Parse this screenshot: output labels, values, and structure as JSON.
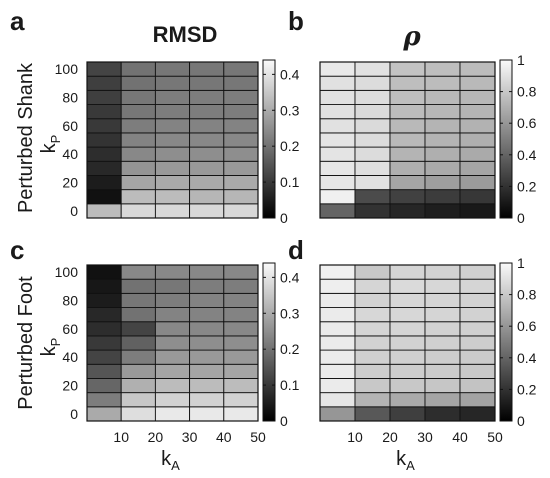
{
  "row_labels": [
    "Perturbed Shank",
    "Perturbed Foot"
  ],
  "column_titles": [
    "RMSD",
    "ρ"
  ],
  "chart_data": [
    {
      "type": "heatmap",
      "panel": "a",
      "title": "RMSD",
      "ylabel": "k",
      "ylabel_sub": "P",
      "xlabel": "",
      "xlabel_sub": "",
      "x": [
        5,
        15,
        25,
        35,
        45
      ],
      "y": [
        0,
        10,
        20,
        30,
        40,
        50,
        60,
        70,
        80,
        90,
        100
      ],
      "xlim": [
        0,
        50
      ],
      "ylim": [
        0,
        100
      ],
      "xticks": [],
      "yticks": [
        0,
        20,
        40,
        60,
        80,
        100
      ],
      "clim": [
        0,
        0.44
      ],
      "colorbar_ticks": [
        0,
        0.1,
        0.2,
        0.3,
        0.4
      ],
      "colormap": "gray",
      "values": [
        [
          0.33,
          0.38,
          0.38,
          0.38,
          0.38
        ],
        [
          0.03,
          0.33,
          0.33,
          0.32,
          0.32
        ],
        [
          0.05,
          0.29,
          0.3,
          0.3,
          0.3
        ],
        [
          0.07,
          0.26,
          0.27,
          0.27,
          0.27
        ],
        [
          0.08,
          0.24,
          0.25,
          0.25,
          0.25
        ],
        [
          0.09,
          0.23,
          0.24,
          0.24,
          0.24
        ],
        [
          0.1,
          0.22,
          0.23,
          0.23,
          0.23
        ],
        [
          0.1,
          0.21,
          0.22,
          0.22,
          0.22
        ],
        [
          0.11,
          0.21,
          0.22,
          0.22,
          0.22
        ],
        [
          0.11,
          0.2,
          0.21,
          0.21,
          0.21
        ],
        [
          0.12,
          0.2,
          0.21,
          0.21,
          0.21
        ]
      ]
    },
    {
      "type": "heatmap",
      "panel": "b",
      "title": "ρ",
      "xlabel": "",
      "ylabel": "",
      "x": [
        5,
        15,
        25,
        35,
        45
      ],
      "y": [
        0,
        10,
        20,
        30,
        40,
        50,
        60,
        70,
        80,
        90,
        100
      ],
      "xlim": [
        0,
        50
      ],
      "ylim": [
        0,
        100
      ],
      "xticks": [],
      "yticks": [],
      "clim": [
        0,
        1
      ],
      "colorbar_ticks": [
        0,
        0.2,
        0.4,
        0.6,
        0.8,
        1
      ],
      "colormap": "gray",
      "values": [
        [
          0.4,
          0.2,
          0.15,
          0.12,
          0.1
        ],
        [
          0.96,
          0.3,
          0.26,
          0.24,
          0.22
        ],
        [
          0.92,
          0.9,
          0.66,
          0.63,
          0.62
        ],
        [
          0.92,
          0.89,
          0.7,
          0.68,
          0.66
        ],
        [
          0.91,
          0.88,
          0.72,
          0.7,
          0.68
        ],
        [
          0.91,
          0.88,
          0.74,
          0.72,
          0.7
        ],
        [
          0.9,
          0.87,
          0.74,
          0.72,
          0.71
        ],
        [
          0.9,
          0.87,
          0.75,
          0.73,
          0.72
        ],
        [
          0.9,
          0.88,
          0.76,
          0.74,
          0.73
        ],
        [
          0.9,
          0.88,
          0.76,
          0.75,
          0.74
        ],
        [
          0.93,
          0.9,
          0.78,
          0.76,
          0.75
        ]
      ]
    },
    {
      "type": "heatmap",
      "panel": "c",
      "title": "",
      "ylabel": "k",
      "ylabel_sub": "P",
      "xlabel": "k",
      "xlabel_sub": "A",
      "x": [
        5,
        15,
        25,
        35,
        45
      ],
      "y": [
        0,
        10,
        20,
        30,
        40,
        50,
        60,
        70,
        80,
        90,
        100
      ],
      "xlim": [
        0,
        50
      ],
      "ylim": [
        0,
        100
      ],
      "xticks": [
        10,
        20,
        30,
        40,
        50
      ],
      "yticks": [
        0,
        20,
        40,
        60,
        80,
        100
      ],
      "clim": [
        0,
        0.44
      ],
      "colorbar_ticks": [
        0,
        0.1,
        0.2,
        0.3,
        0.4
      ],
      "colormap": "gray",
      "values": [
        [
          0.3,
          0.39,
          0.41,
          0.41,
          0.41
        ],
        [
          0.22,
          0.35,
          0.37,
          0.37,
          0.37
        ],
        [
          0.18,
          0.31,
          0.33,
          0.33,
          0.33
        ],
        [
          0.15,
          0.27,
          0.29,
          0.29,
          0.29
        ],
        [
          0.12,
          0.22,
          0.27,
          0.27,
          0.27
        ],
        [
          0.1,
          0.17,
          0.25,
          0.25,
          0.25
        ],
        [
          0.08,
          0.12,
          0.24,
          0.24,
          0.24
        ],
        [
          0.07,
          0.2,
          0.23,
          0.23,
          0.23
        ],
        [
          0.05,
          0.21,
          0.22,
          0.23,
          0.23
        ],
        [
          0.04,
          0.2,
          0.21,
          0.22,
          0.22
        ],
        [
          0.03,
          0.24,
          0.24,
          0.24,
          0.24
        ]
      ]
    },
    {
      "type": "heatmap",
      "panel": "d",
      "title": "",
      "xlabel": "k",
      "xlabel_sub": "A",
      "ylabel": "",
      "x": [
        5,
        15,
        25,
        35,
        45
      ],
      "y": [
        0,
        10,
        20,
        30,
        40,
        50,
        60,
        70,
        80,
        90,
        100
      ],
      "xlim": [
        0,
        50
      ],
      "ylim": [
        0,
        100
      ],
      "xticks": [
        10,
        20,
        30,
        40,
        50
      ],
      "yticks": [],
      "clim": [
        0,
        1
      ],
      "colorbar_ticks": [
        0,
        0.2,
        0.4,
        0.6,
        0.8,
        1
      ],
      "colormap": "gray",
      "values": [
        [
          0.6,
          0.35,
          0.25,
          0.18,
          0.15
        ],
        [
          0.92,
          0.72,
          0.68,
          0.66,
          0.65
        ],
        [
          0.94,
          0.8,
          0.8,
          0.79,
          0.78
        ],
        [
          0.94,
          0.82,
          0.82,
          0.81,
          0.8
        ],
        [
          0.94,
          0.83,
          0.83,
          0.82,
          0.81
        ],
        [
          0.94,
          0.84,
          0.84,
          0.83,
          0.82
        ],
        [
          0.94,
          0.85,
          0.85,
          0.84,
          0.83
        ],
        [
          0.94,
          0.86,
          0.86,
          0.85,
          0.84
        ],
        [
          0.94,
          0.84,
          0.86,
          0.85,
          0.84
        ],
        [
          0.95,
          0.85,
          0.87,
          0.86,
          0.85
        ],
        [
          0.96,
          0.8,
          0.85,
          0.84,
          0.83
        ]
      ]
    }
  ]
}
